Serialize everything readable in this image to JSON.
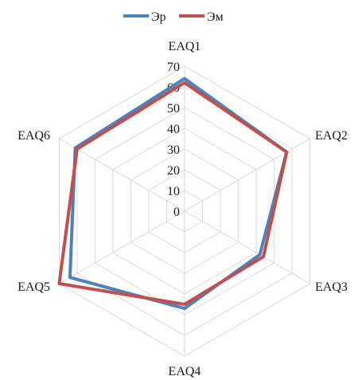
{
  "chart_data": {
    "type": "radar",
    "categories": [
      "EAQ1",
      "EAQ2",
      "EAQ3",
      "EAQ4",
      "EAQ5",
      "EAQ6"
    ],
    "series": [
      {
        "name": "Эр",
        "values": [
          64,
          57,
          42,
          47,
          64,
          61
        ],
        "color": "#4f81bd"
      },
      {
        "name": "Эм",
        "values": [
          62,
          57,
          44,
          45,
          70,
          60
        ],
        "color": "#c0504d"
      }
    ],
    "rlim": [
      0,
      70
    ],
    "ticks": [
      0,
      10,
      20,
      30,
      40,
      50,
      60,
      70
    ],
    "grid": true,
    "legend_position": "top"
  }
}
